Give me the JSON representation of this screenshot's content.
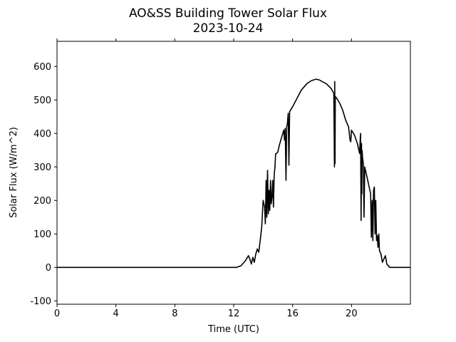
{
  "chart_data": {
    "type": "line",
    "title": "AO&SS Building Tower Solar Flux",
    "subtitle": "2023-10-24",
    "xlabel": "Time (UTC)",
    "ylabel": "Solar Flux (W/m^2)",
    "xlim": [
      0,
      24
    ],
    "ylim": [
      -110,
      675
    ],
    "xticks": [
      0,
      4,
      8,
      12,
      16,
      20
    ],
    "yticks": [
      -100,
      0,
      100,
      200,
      300,
      400,
      500,
      600
    ],
    "top_ticks": true,
    "grid": false,
    "line_color": "#000000",
    "series": [
      {
        "x": [
          0,
          12.2,
          12.5,
          12.8,
          13.0,
          13.1,
          13.2,
          13.3,
          13.4,
          13.5,
          13.6,
          13.7,
          13.8,
          13.9,
          14.0,
          14.1,
          14.15,
          14.2,
          14.25,
          14.3,
          14.35,
          14.4,
          14.45,
          14.5,
          14.55,
          14.6,
          14.65,
          14.7,
          14.75,
          14.8,
          14.85,
          14.9,
          15.0,
          15.1,
          15.2,
          15.3,
          15.4,
          15.45,
          15.5,
          15.55,
          15.6,
          15.65,
          15.7,
          15.75,
          15.8,
          16.0,
          16.3,
          16.6,
          17.0,
          17.3,
          17.6,
          17.8,
          18.0,
          18.3,
          18.6,
          18.8,
          18.84,
          18.86,
          18.88,
          18.9,
          19.0,
          19.2,
          19.4,
          19.6,
          19.8,
          19.9,
          19.95,
          20.0,
          20.2,
          20.4,
          20.5,
          20.55,
          20.6,
          20.62,
          20.65,
          20.68,
          20.7,
          20.72,
          20.75,
          20.8,
          20.85,
          20.9,
          21.0,
          21.1,
          21.2,
          21.3,
          21.35,
          21.4,
          21.45,
          21.5,
          21.55,
          21.6,
          21.65,
          21.7,
          21.75,
          21.8,
          21.85,
          21.9,
          22.0,
          22.1,
          22.2,
          22.3,
          22.4,
          22.5,
          22.6,
          22.8,
          23.0,
          24.0
        ],
        "y": [
          0,
          0,
          5,
          20,
          35,
          25,
          10,
          30,
          15,
          40,
          55,
          45,
          80,
          120,
          200,
          180,
          130,
          260,
          150,
          290,
          160,
          230,
          170,
          260,
          190,
          210,
          260,
          180,
          275,
          300,
          340,
          340,
          345,
          365,
          380,
          395,
          410,
          380,
          415,
          260,
          420,
          430,
          460,
          305,
          465,
          480,
          505,
          530,
          550,
          558,
          562,
          560,
          555,
          548,
          535,
          520,
          300,
          555,
          310,
          510,
          505,
          490,
          470,
          440,
          420,
          380,
          375,
          410,
          395,
          370,
          350,
          340,
          390,
          400,
          140,
          370,
          220,
          350,
          330,
          310,
          150,
          300,
          280,
          260,
          240,
          220,
          90,
          200,
          80,
          230,
          240,
          100,
          200,
          80,
          95,
          60,
          100,
          50,
          40,
          15,
          25,
          35,
          10,
          5,
          0,
          0,
          0,
          0
        ]
      }
    ]
  }
}
